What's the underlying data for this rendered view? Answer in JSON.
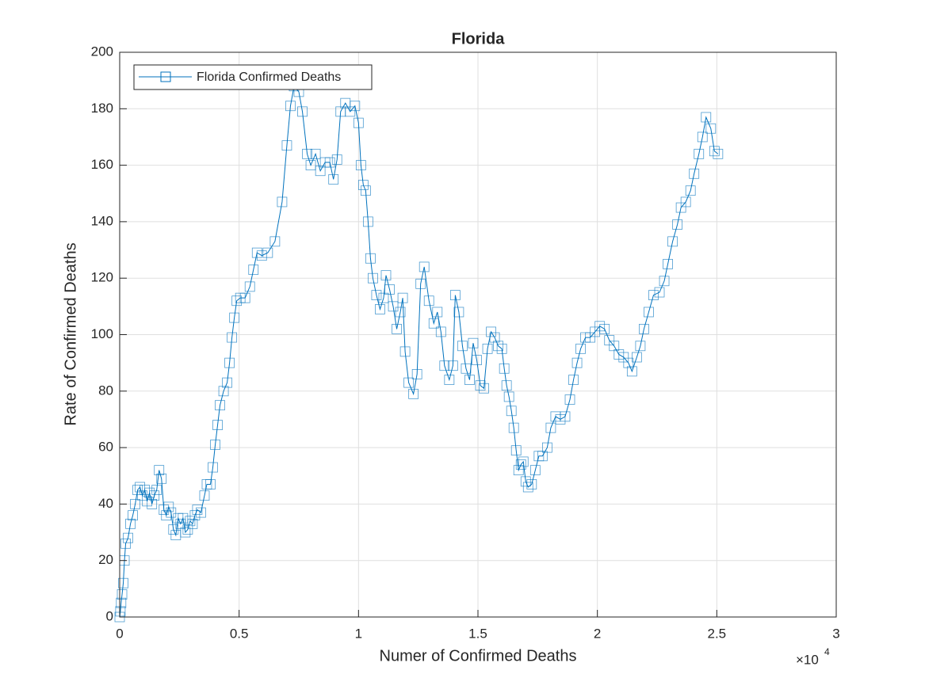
{
  "chart_data": {
    "type": "line",
    "title": "Florida",
    "x_label": "Numer of Confirmed Deaths",
    "y_label": "Rate of Confirmed Deaths",
    "x_multiplier": {
      "base": "×10",
      "exponent": "4"
    },
    "xlim": [
      0,
      30000
    ],
    "ylim": [
      0,
      200
    ],
    "xticks": [
      0,
      {
        "value": 5000,
        "label": "0.5"
      },
      {
        "value": 10000,
        "label": "1"
      },
      {
        "value": 15000,
        "label": "1.5"
      },
      {
        "value": 20000,
        "label": "2"
      },
      {
        "value": 25000,
        "label": "2.5"
      },
      {
        "value": 30000,
        "label": "3"
      }
    ],
    "yticks": [
      0,
      20,
      40,
      60,
      80,
      100,
      120,
      140,
      160,
      180,
      200
    ],
    "grid": true,
    "legend": "top-left",
    "series": [
      {
        "name": "Florida Confirmed Deaths",
        "color": "#0072BD",
        "marker": "square",
        "x": [
          0,
          30,
          60,
          100,
          150,
          200,
          250,
          350,
          450,
          550,
          650,
          750,
          850,
          950,
          1050,
          1150,
          1250,
          1350,
          1450,
          1550,
          1650,
          1750,
          1850,
          1950,
          2050,
          2150,
          2250,
          2350,
          2450,
          2550,
          2650,
          2750,
          2850,
          2950,
          3050,
          3150,
          3250,
          3400,
          3550,
          3650,
          3800,
          3900,
          4000,
          4100,
          4200,
          4350,
          4500,
          4600,
          4700,
          4800,
          4900,
          5050,
          5250,
          5450,
          5600,
          5750,
          5950,
          6200,
          6500,
          6800,
          7000,
          7150,
          7300,
          7500,
          7650,
          7850,
          8000,
          8200,
          8400,
          8600,
          8800,
          8950,
          9100,
          9250,
          9450,
          9650,
          9850,
          10000,
          10100,
          10200,
          10300,
          10400,
          10500,
          10600,
          10750,
          10900,
          11050,
          11150,
          11300,
          11450,
          11600,
          11750,
          11850,
          11950,
          12100,
          12300,
          12450,
          12600,
          12750,
          12950,
          13150,
          13300,
          13450,
          13600,
          13800,
          13950,
          14050,
          14200,
          14350,
          14500,
          14650,
          14800,
          14950,
          15100,
          15250,
          15400,
          15550,
          15700,
          15850,
          16000,
          16100,
          16200,
          16300,
          16400,
          16500,
          16600,
          16700,
          16800,
          16900,
          17000,
          17100,
          17250,
          17400,
          17550,
          17700,
          17900,
          18050,
          18250,
          18450,
          18650,
          18850,
          19000,
          19150,
          19300,
          19500,
          19700,
          19900,
          20100,
          20300,
          20500,
          20700,
          20900,
          21100,
          21300,
          21450,
          21650,
          21800,
          21950,
          22150,
          22350,
          22600,
          22800,
          22950,
          23150,
          23350,
          23500,
          23700,
          23900,
          24050,
          24250,
          24400,
          24550,
          24750,
          24900,
          25050
        ],
        "values": [
          0,
          2,
          5,
          8,
          12,
          20,
          26,
          28,
          33,
          36,
          40,
          45,
          46,
          43,
          45,
          41,
          44,
          40,
          43,
          45,
          52,
          49,
          38,
          36,
          39,
          37,
          31,
          29,
          35,
          33,
          35,
          30,
          31,
          34,
          33,
          36,
          38,
          37,
          43,
          47,
          47,
          53,
          61,
          68,
          75,
          80,
          83,
          90,
          99,
          106,
          112,
          113,
          113,
          117,
          123,
          129,
          128,
          129,
          133,
          147,
          167,
          181,
          188,
          186,
          179,
          164,
          160,
          164,
          158,
          161,
          161,
          155,
          162,
          179,
          182,
          179,
          181,
          175,
          160,
          153,
          151,
          140,
          127,
          120,
          114,
          109,
          113,
          121,
          116,
          110,
          102,
          108,
          113,
          94,
          83,
          79,
          86,
          118,
          124,
          112,
          104,
          108,
          101,
          89,
          84,
          89,
          114,
          108,
          96,
          88,
          84,
          97,
          91,
          82,
          81,
          95,
          101,
          99,
          96,
          95,
          88,
          82,
          78,
          73,
          67,
          59,
          52,
          54,
          55,
          48,
          46,
          47,
          52,
          57,
          57,
          60,
          67,
          71,
          70,
          71,
          77,
          84,
          90,
          95,
          99,
          99,
          101,
          103,
          102,
          98,
          96,
          93,
          92,
          90,
          87,
          92,
          96,
          102,
          108,
          114,
          115,
          119,
          125,
          133,
          139,
          145,
          147,
          151,
          157,
          164,
          170,
          177,
          173,
          165,
          164
        ]
      }
    ]
  }
}
